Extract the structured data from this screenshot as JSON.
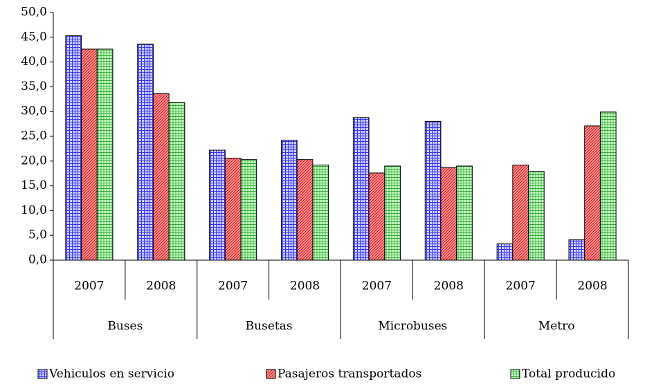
{
  "chart_data": {
    "type": "bar",
    "groups": [
      "Buses",
      "Busetas",
      "Microbuses",
      "Metro"
    ],
    "categories": [
      "2007",
      "2008",
      "2007",
      "2008",
      "2007",
      "2008",
      "2007",
      "2008"
    ],
    "series": [
      {
        "name": "Vehiculos en servicio",
        "color": "#3333ff",
        "values": [
          45.3,
          43.6,
          22.2,
          24.2,
          28.8,
          28.0,
          3.3,
          4.1
        ]
      },
      {
        "name": "Pasajeros transportados",
        "color": "#ff3333",
        "values": [
          42.6,
          33.6,
          20.6,
          20.3,
          17.6,
          18.7,
          19.2,
          27.1
        ]
      },
      {
        "name": "Total producido",
        "color": "#33aa33",
        "values": [
          42.6,
          31.8,
          20.3,
          19.2,
          19.0,
          19.0,
          17.9,
          29.9
        ]
      }
    ],
    "ylim": [
      0,
      50
    ],
    "yticks": [
      {
        "value": 0,
        "label": "0,0"
      },
      {
        "value": 5,
        "label": "5,0"
      },
      {
        "value": 10,
        "label": "10,0"
      },
      {
        "value": 15,
        "label": "15,0"
      },
      {
        "value": 20,
        "label": "20,0"
      },
      {
        "value": 25,
        "label": "25,0"
      },
      {
        "value": 30,
        "label": "30,0"
      },
      {
        "value": 35,
        "label": "35,0"
      },
      {
        "value": 40,
        "label": "40,0"
      },
      {
        "value": 45,
        "label": "45,0"
      },
      {
        "value": 50,
        "label": "50,0"
      }
    ],
    "grid": false,
    "legend": "bottom"
  }
}
